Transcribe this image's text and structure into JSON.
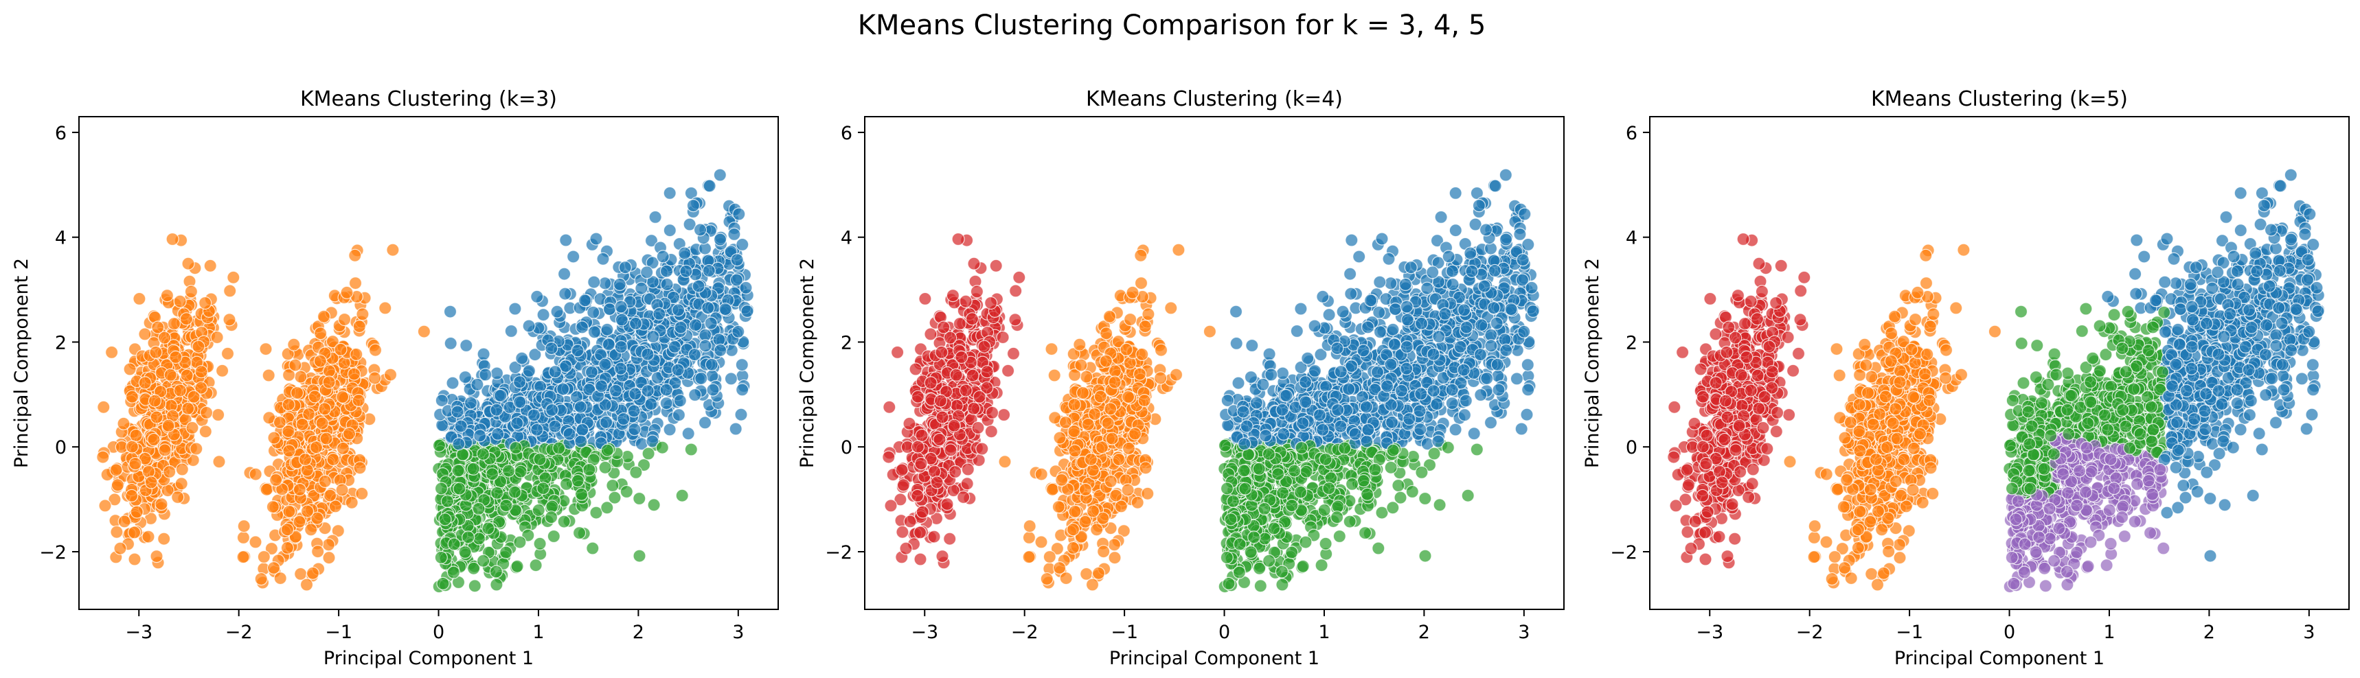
{
  "figure": {
    "title": "KMeans Clustering Comparison for k = 3, 4, 5"
  },
  "colors": {
    "c0": "#1f77b4",
    "c1": "#ff7f0e",
    "c2": "#2ca02c",
    "c3": "#d62728",
    "c4": "#9467bd"
  },
  "chart_data": [
    {
      "type": "scatter",
      "title": "KMeans Clustering (k=3)",
      "xlabel": "Principal Component 1",
      "ylabel": "Principal Component 2",
      "xlim": [
        -3.6,
        3.4
      ],
      "ylim": [
        -3.1,
        6.3
      ],
      "xticks": [
        -3,
        -2,
        -1,
        0,
        1,
        2,
        3
      ],
      "yticks": [
        -2,
        0,
        2,
        4,
        6
      ],
      "k": 3,
      "clusters": [
        {
          "label": 0,
          "color_key": "c0",
          "extent": "blue upper region (x 0 to 3, above y 0)"
        },
        {
          "label": 1,
          "color_key": "c1",
          "extent": "two left groups (x -3.3 to -0.5)"
        },
        {
          "label": 2,
          "color_key": "c2",
          "extent": "lower right region (x 0 to 1.8, y -2.6 to 0)"
        }
      ],
      "groups": [
        {
          "name": "far-left",
          "x": [
            -3.3,
            -2.2
          ],
          "y": [
            -1.8,
            3.6
          ]
        },
        {
          "name": "mid-left",
          "x": [
            -1.8,
            -0.6
          ],
          "y": [
            -2.0,
            3.8
          ]
        },
        {
          "name": "right",
          "x": [
            0.0,
            3.0
          ],
          "y": [
            -2.6,
            5.9
          ]
        }
      ]
    },
    {
      "type": "scatter",
      "title": "KMeans Clustering (k=4)",
      "xlabel": "Principal Component 1",
      "ylabel": "Principal Component 2",
      "xlim": [
        -3.6,
        3.4
      ],
      "ylim": [
        -3.1,
        6.3
      ],
      "xticks": [
        -3,
        -2,
        -1,
        0,
        1,
        2,
        3
      ],
      "yticks": [
        -2,
        0,
        2,
        4,
        6
      ],
      "k": 4
    },
    {
      "type": "scatter",
      "title": "KMeans Clustering (k=5)",
      "xlabel": "Principal Component 1",
      "ylabel": "Principal Component 2",
      "xlim": [
        -3.6,
        3.4
      ],
      "ylim": [
        -3.1,
        6.3
      ],
      "xticks": [
        -3,
        -2,
        -1,
        0,
        1,
        2,
        3
      ],
      "yticks": [
        -2,
        0,
        2,
        4,
        6
      ],
      "k": 5
    }
  ]
}
